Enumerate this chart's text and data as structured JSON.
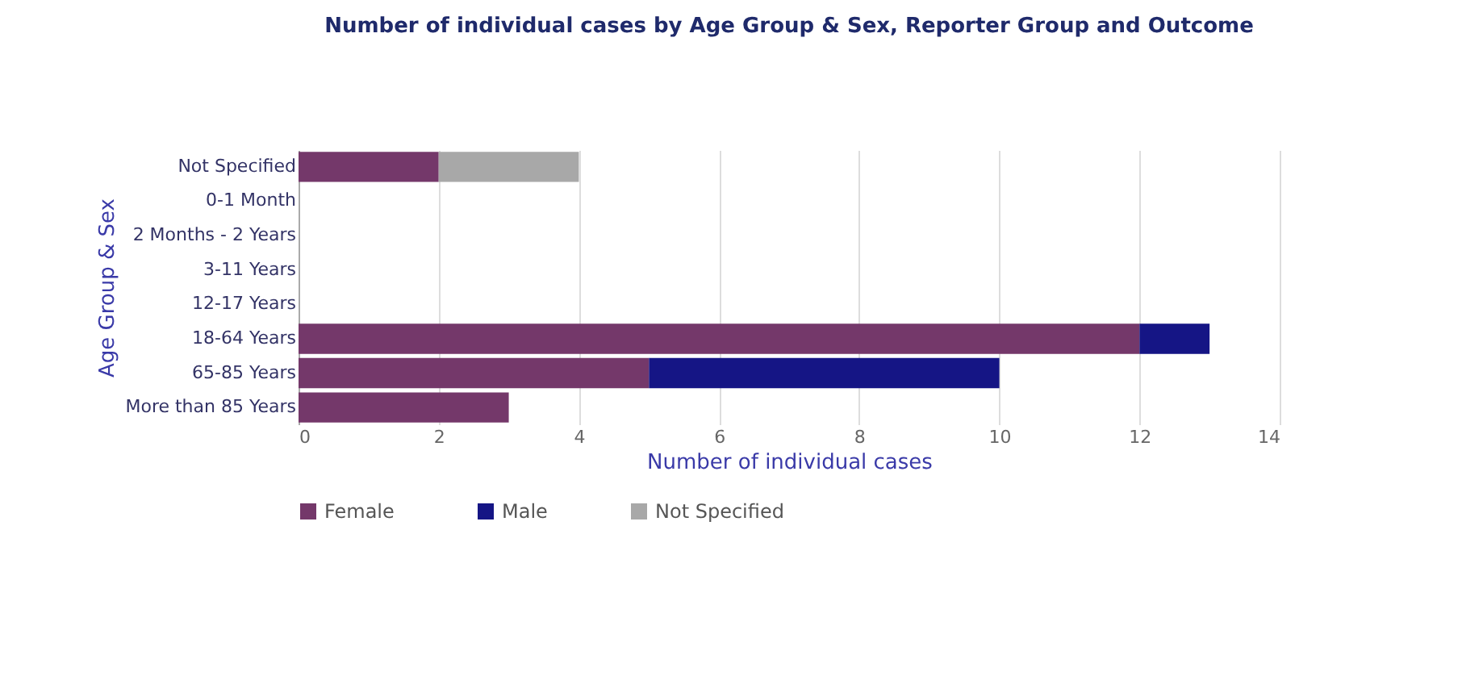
{
  "chart_data": {
    "type": "bar",
    "title": "Number of individual cases by Age Group & Sex, Reporter Group and Outcome",
    "orientation": "horizontal",
    "stacked": true,
    "categories": [
      "Not Specified",
      "0-1 Month",
      "2 Months - 2 Years",
      "3-11 Years",
      "12-17 Years",
      "18-64 Years",
      "65-85 Years",
      "More than 85 Years"
    ],
    "series": [
      {
        "name": "Female",
        "color": "#74386a",
        "values": [
          2,
          null,
          null,
          null,
          null,
          12,
          5,
          3
        ]
      },
      {
        "name": "Male",
        "color": "#151585",
        "values": [
          null,
          null,
          null,
          null,
          null,
          1,
          5,
          null
        ]
      },
      {
        "name": "Not Specified",
        "color": "#a8a8a8",
        "values": [
          2,
          null,
          null,
          null,
          null,
          null,
          null,
          null
        ]
      }
    ],
    "xlabel": "Number of individual cases",
    "ylabel": "Age Group & Sex",
    "xlim": [
      0,
      14
    ],
    "xticks": [
      0,
      2,
      4,
      6,
      8,
      10,
      12,
      14
    ],
    "grid": "x",
    "legend": "bottom"
  }
}
